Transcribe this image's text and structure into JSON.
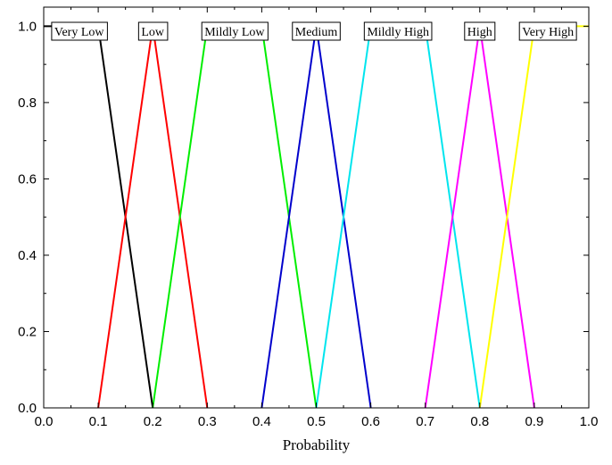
{
  "chart_data": {
    "type": "line",
    "title": "",
    "xlabel": "Probability",
    "ylabel": "",
    "xlim": [
      0.0,
      1.0
    ],
    "ylim": [
      0.0,
      1.05
    ],
    "xticks": [
      "0.0",
      "0.1",
      "0.2",
      "0.3",
      "0.4",
      "0.5",
      "0.6",
      "0.7",
      "0.8",
      "0.9",
      "1.0"
    ],
    "yticks": [
      "0.0",
      "0.2",
      "0.4",
      "0.6",
      "0.8",
      "1.0"
    ],
    "grid": false,
    "legend": "labels boxed above each curve peak",
    "series": [
      {
        "name": "Very Low",
        "color": "#000000",
        "x": [
          0.0,
          0.1,
          0.2
        ],
        "y": [
          1.0,
          1.0,
          0.0
        ]
      },
      {
        "name": "Low",
        "color": "#ff0000",
        "x": [
          0.1,
          0.2,
          0.3
        ],
        "y": [
          0.0,
          1.0,
          0.0
        ]
      },
      {
        "name": "Mildly Low",
        "color": "#00ee00",
        "x": [
          0.2,
          0.3,
          0.4,
          0.5
        ],
        "y": [
          0.0,
          1.0,
          1.0,
          0.0
        ]
      },
      {
        "name": "Medium",
        "color": "#0000cc",
        "x": [
          0.4,
          0.5,
          0.6
        ],
        "y": [
          0.0,
          1.0,
          0.0
        ]
      },
      {
        "name": "Mildly High",
        "color": "#00e5ee",
        "x": [
          0.5,
          0.6,
          0.7,
          0.8
        ],
        "y": [
          0.0,
          1.0,
          1.0,
          0.0
        ]
      },
      {
        "name": "High",
        "color": "#ff00ff",
        "x": [
          0.7,
          0.8,
          0.9
        ],
        "y": [
          0.0,
          1.0,
          0.0
        ]
      },
      {
        "name": "Very High",
        "color": "#ffff00",
        "x": [
          0.8,
          0.9,
          1.0
        ],
        "y": [
          0.0,
          1.0,
          1.0
        ]
      }
    ]
  }
}
